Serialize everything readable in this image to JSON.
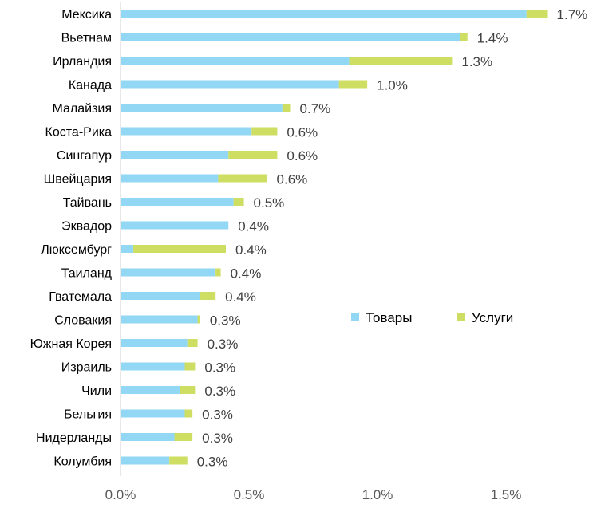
{
  "chart_data": {
    "type": "bar",
    "orientation": "horizontal",
    "stacked": true,
    "categories": [
      "Мексика",
      "Вьетнам",
      "Ирландия",
      "Канада",
      "Малайзия",
      "Коста-Рика",
      "Сингапур",
      "Швейцария",
      "Тайвань",
      "Эквадор",
      "Люксембург",
      "Таиланд",
      "Гватемала",
      "Словакия",
      "Южная Корея",
      "Израиль",
      "Чили",
      "Бельгия",
      "Нидерланды",
      "Колумбия"
    ],
    "series": [
      {
        "name": "Товары",
        "color": "#92d7f3",
        "values": [
          1.58,
          1.32,
          0.89,
          0.85,
          0.63,
          0.51,
          0.42,
          0.38,
          0.44,
          0.42,
          0.05,
          0.37,
          0.31,
          0.3,
          0.26,
          0.25,
          0.23,
          0.25,
          0.21,
          0.19
        ]
      },
      {
        "name": "Услуги",
        "color": "#cdde62",
        "values": [
          0.08,
          0.03,
          0.4,
          0.11,
          0.03,
          0.1,
          0.19,
          0.19,
          0.04,
          0.0,
          0.36,
          0.02,
          0.06,
          0.01,
          0.04,
          0.04,
          0.06,
          0.03,
          0.07,
          0.07
        ]
      }
    ],
    "data_labels": [
      "1.7%",
      "1.4%",
      "1.3%",
      "1.0%",
      "0.7%",
      "0.6%",
      "0.6%",
      "0.6%",
      "0.5%",
      "0.4%",
      "0.4%",
      "0.4%",
      "0.4%",
      "0.3%",
      "0.3%",
      "0.3%",
      "0.3%",
      "0.3%",
      "0.3%",
      "0.3%"
    ],
    "x_ticks": [
      0,
      0.5,
      1.0,
      1.5
    ],
    "x_tick_labels": [
      "0.0%",
      "0.5%",
      "1.0%",
      "1.5%"
    ],
    "xlim": [
      0,
      1.8
    ],
    "title": "",
    "xlabel": "",
    "ylabel": "",
    "legend_position": "middle-right",
    "grid": false,
    "axis_color": "#d0d0d0",
    "tick_label_color": "#595959",
    "category_label_color": "#000000",
    "data_label_color": "#404040"
  }
}
